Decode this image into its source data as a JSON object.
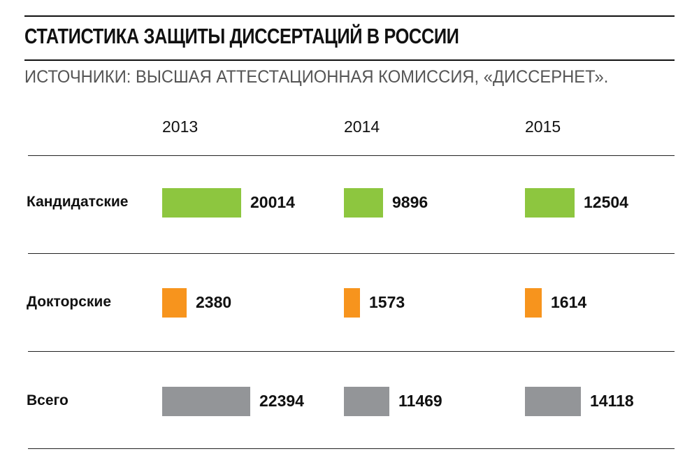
{
  "header": {
    "title": "СТАТИСТИКА ЗАЩИТЫ ДИССЕРТАЦИЙ В РОССИИ",
    "subtitle": "ИСТОЧНИКИ: ВЫСШАЯ АТТЕСТАЦИОННАЯ КОМИССИЯ, «ДИССЕРНЕТ»."
  },
  "chart_data": {
    "type": "bar",
    "title": "СТАТИСТИКА ЗАЩИТЫ ДИССЕРТАЦИЙ В РОССИИ",
    "subtitle": "ИСТОЧНИКИ: ВЫСШАЯ АТТЕСТАЦИОННАЯ КОМИССИЯ, «ДИССЕРНЕТ».",
    "orientation": "horizontal",
    "categories": [
      "2013",
      "2014",
      "2015"
    ],
    "series": [
      {
        "name": "Кандидатские",
        "color": "#8dc63f",
        "values": [
          20014,
          9896,
          12504
        ]
      },
      {
        "name": "Докторские",
        "color": "#f7941d",
        "values": [
          2380,
          1573,
          1614
        ]
      },
      {
        "name": "Всего",
        "color": "#939598",
        "values": [
          22394,
          11469,
          14118
        ]
      }
    ],
    "grid": false,
    "legend": "none"
  }
}
